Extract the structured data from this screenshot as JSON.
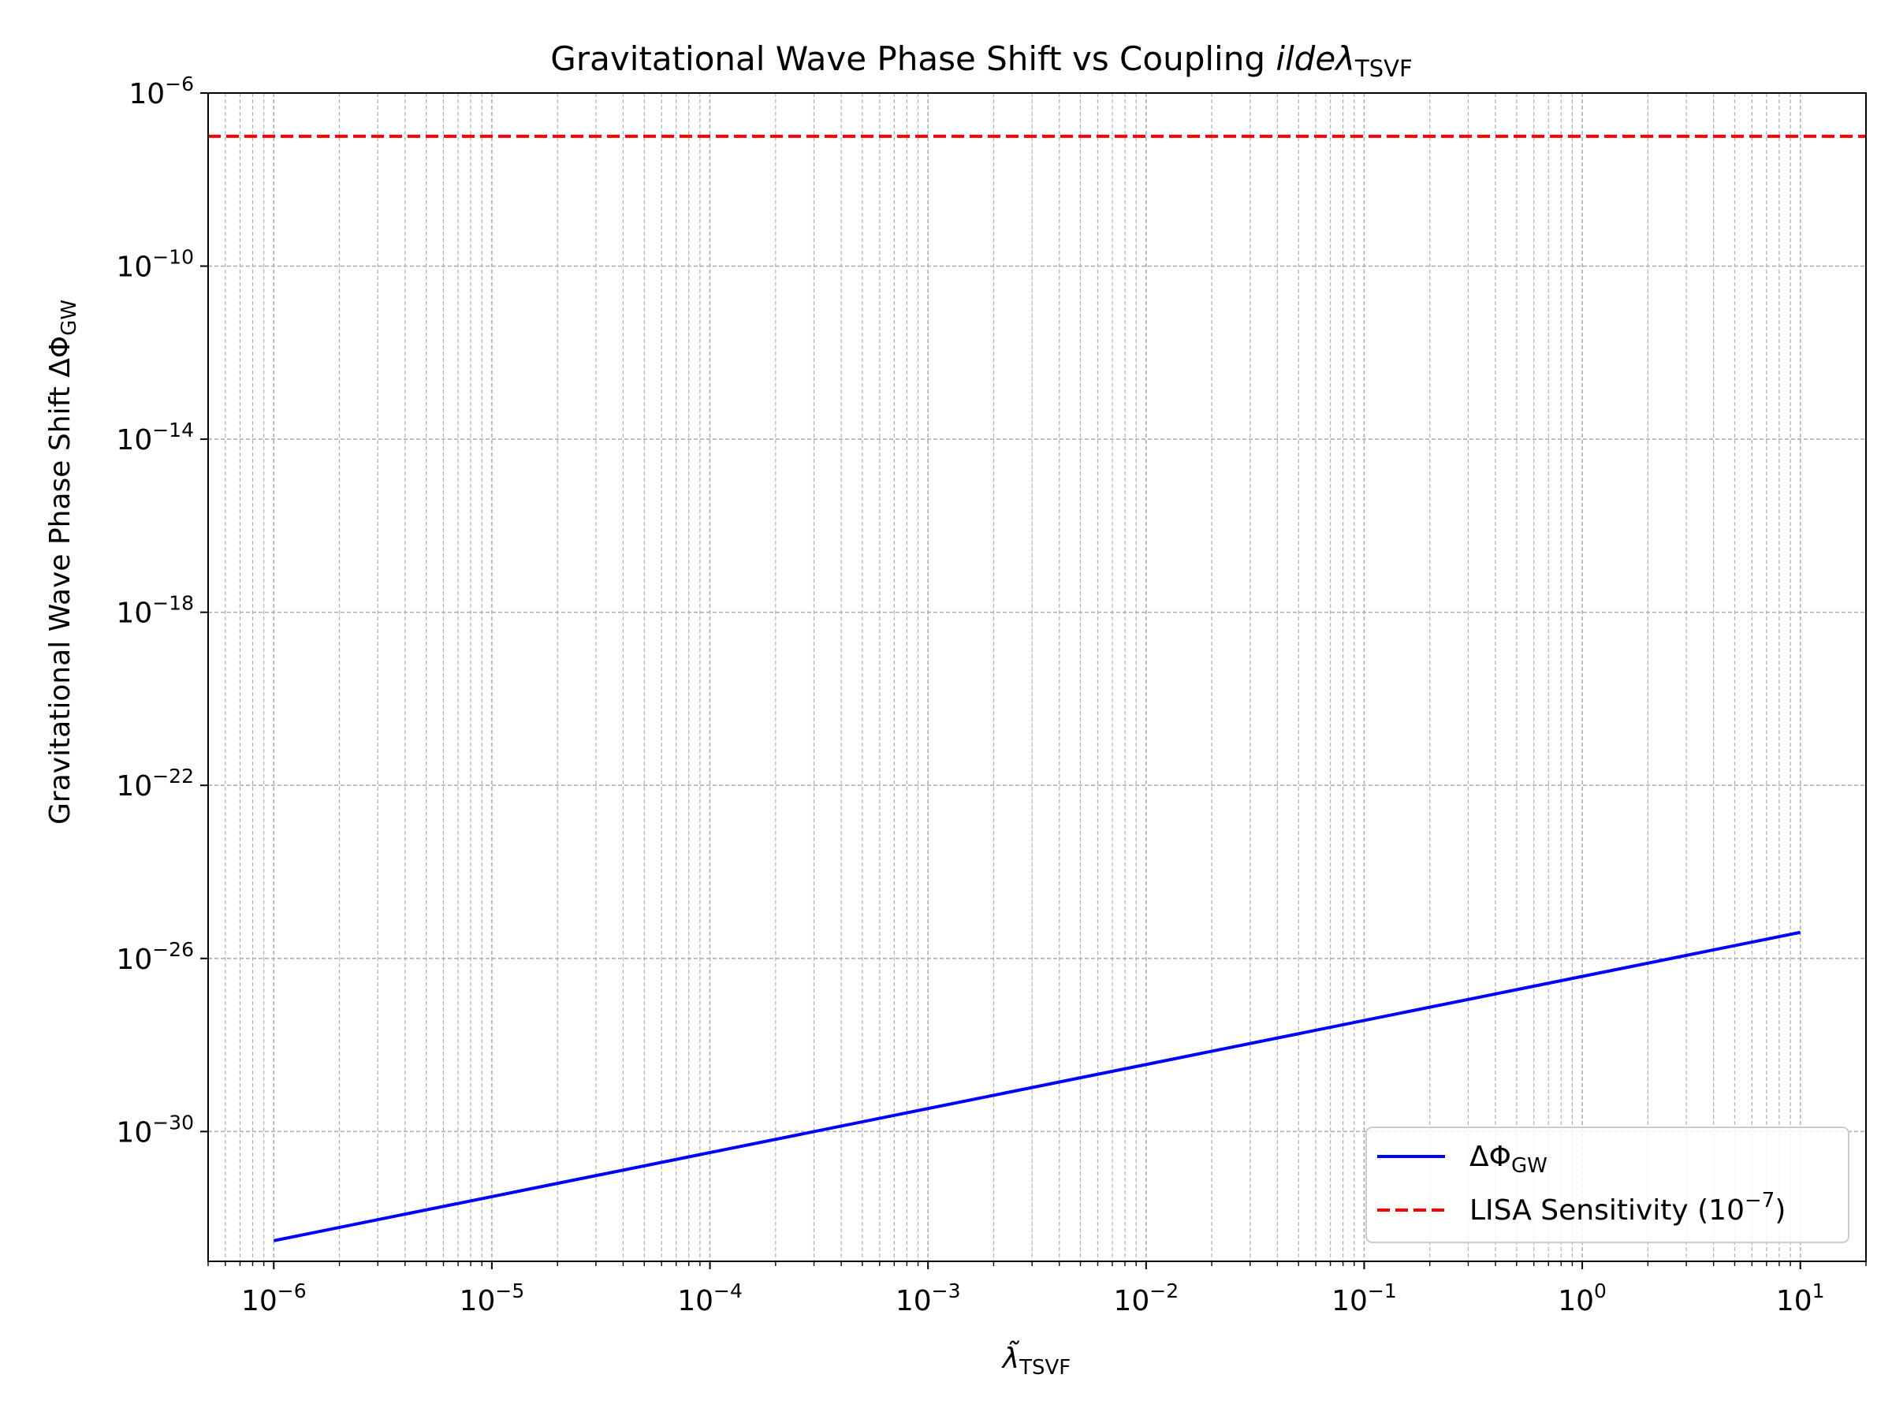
{
  "chart_data": {
    "type": "line",
    "title": "Gravitational Wave Phase Shift vs Coupling",
    "title_math": "ildeλ",
    "title_math_sub": "TSVF",
    "xlabel_symbol": "λ̃",
    "xlabel_sub": "TSVF",
    "ylabel": "Gravitational Wave Phase Shift ΔΦ",
    "ylabel_sub": "GW",
    "x_scale": "log",
    "y_scale": "log",
    "xlim": [
      5e-07,
      20
    ],
    "ylim": [
      1e-33,
      1e-06
    ],
    "x_ticks": [
      {
        "base": "10",
        "exp": "−6",
        "value": 1e-06
      },
      {
        "base": "10",
        "exp": "−5",
        "value": 1e-05
      },
      {
        "base": "10",
        "exp": "−4",
        "value": 0.0001
      },
      {
        "base": "10",
        "exp": "−3",
        "value": 0.001
      },
      {
        "base": "10",
        "exp": "−2",
        "value": 0.01
      },
      {
        "base": "10",
        "exp": "−1",
        "value": 0.1
      },
      {
        "base": "10",
        "exp": "0",
        "value": 1
      },
      {
        "base": "10",
        "exp": "1",
        "value": 10
      }
    ],
    "y_ticks": [
      {
        "base": "10",
        "exp": "−6",
        "value": 1e-06
      },
      {
        "base": "10",
        "exp": "−10",
        "value": 1e-10
      },
      {
        "base": "10",
        "exp": "−14",
        "value": 1e-14
      },
      {
        "base": "10",
        "exp": "−18",
        "value": 1e-18
      },
      {
        "base": "10",
        "exp": "−22",
        "value": 1e-22
      },
      {
        "base": "10",
        "exp": "−26",
        "value": 1e-26
      },
      {
        "base": "10",
        "exp": "−30",
        "value": 1e-30
      }
    ],
    "grid": true,
    "legend_position": "lower right",
    "series": [
      {
        "name": "ΔΦ",
        "name_sub": "GW",
        "color": "#0000ff",
        "style": "solid",
        "x": [
          1e-06,
          10
        ],
        "y": [
          3e-33,
          4e-26
        ]
      },
      {
        "name": "LISA Sensitivity (10",
        "name_sup": "−7",
        "name_tail": ")",
        "color": "#ff0000",
        "style": "dashed",
        "y_const": 1e-07
      }
    ]
  }
}
